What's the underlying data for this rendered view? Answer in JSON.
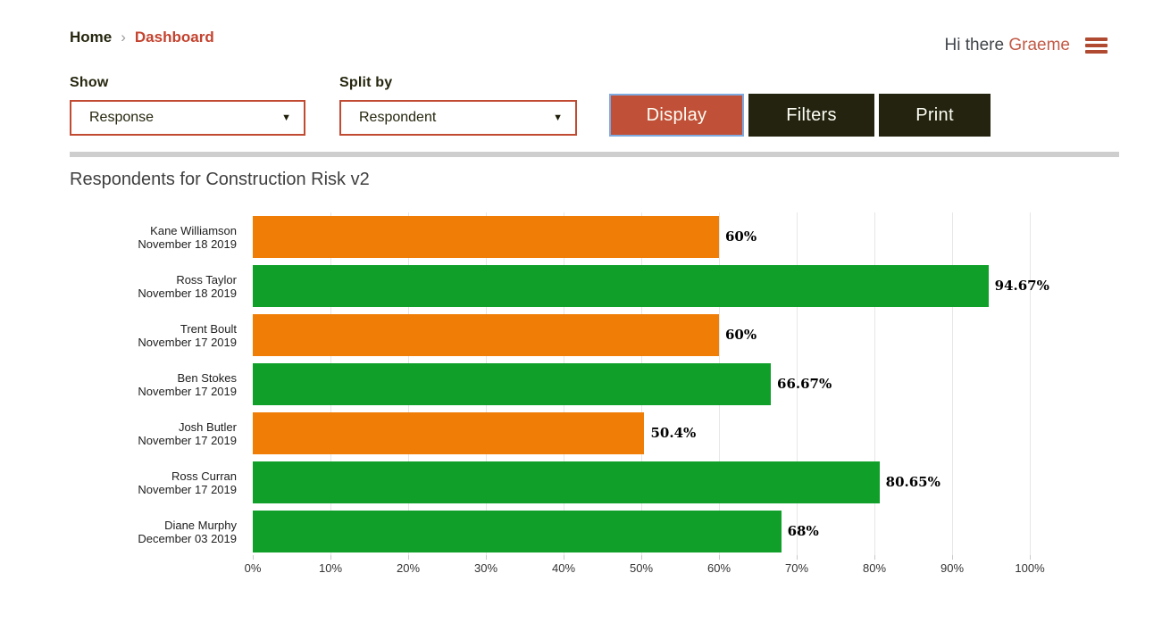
{
  "header": {
    "breadcrumb": {
      "home": "Home",
      "separator": "›",
      "current": "Dashboard"
    },
    "greeting": {
      "prefix": "Hi there ",
      "username": "Graeme"
    },
    "menu_icon": "hamburger-icon"
  },
  "controls": {
    "show": {
      "label": "Show",
      "value": "Response",
      "caret_icon": "▼"
    },
    "split_by": {
      "label": "Split by",
      "value": "Respondent",
      "caret_icon": "▼"
    },
    "buttons": {
      "display": "Display",
      "filters": "Filters",
      "print": "Print"
    }
  },
  "chart_data": {
    "type": "bar",
    "orientation": "horizontal",
    "title": "Respondents for Construction Risk v2",
    "xlabel": "",
    "ylabel": "",
    "xlim": [
      0,
      100
    ],
    "grid": true,
    "x_ticks": [
      "0%",
      "10%",
      "20%",
      "30%",
      "40%",
      "50%",
      "60%",
      "70%",
      "80%",
      "90%",
      "100%"
    ],
    "bar_colors": {
      "orange": "#f07e06",
      "green": "#10a02a"
    },
    "rows": [
      {
        "name": "Kane Williamson",
        "date": "November 18 2019",
        "value": 60,
        "label": "60%",
        "color": "#f07e06"
      },
      {
        "name": "Ross Taylor",
        "date": "November 18 2019",
        "value": 94.67,
        "label": "94.67%",
        "color": "#10a02a"
      },
      {
        "name": "Trent Boult",
        "date": "November 17 2019",
        "value": 60,
        "label": "60%",
        "color": "#f07e06"
      },
      {
        "name": "Ben Stokes",
        "date": "November 17 2019",
        "value": 66.67,
        "label": "66.67%",
        "color": "#10a02a"
      },
      {
        "name": "Josh Butler",
        "date": "November 17 2019",
        "value": 50.4,
        "label": "50.4%",
        "color": "#f07e06"
      },
      {
        "name": "Ross Curran",
        "date": "November 17 2019",
        "value": 80.65,
        "label": "80.65%",
        "color": "#10a02a"
      },
      {
        "name": "Diane Murphy",
        "date": "December 03 2019",
        "value": 68,
        "label": "68%",
        "color": "#10a02a"
      }
    ]
  },
  "colors": {
    "accent_red": "#c4432f",
    "display_button_bg": "#c05038",
    "display_button_focus_border": "#7faadf",
    "dark_button_bg": "#23230f",
    "divider": "#cecece",
    "gridline": "#e7e7e7"
  }
}
